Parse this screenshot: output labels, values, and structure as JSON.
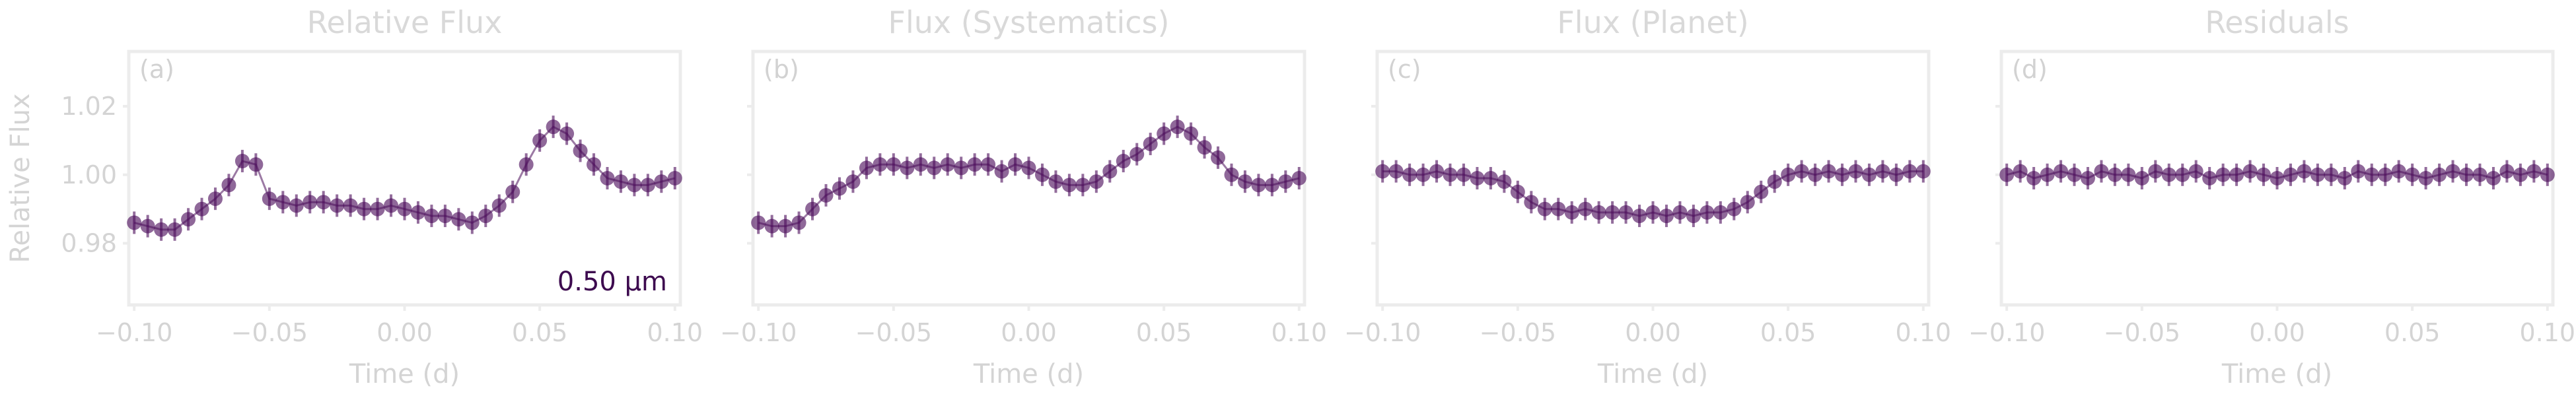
{
  "chart_data": [
    {
      "type": "scatter",
      "title": "Relative Flux",
      "panel_label": "(a)",
      "xlabel": "Time (d)",
      "ylabel": "Relative Flux",
      "annotation": "0.50 µm",
      "xlim": [
        -0.102,
        0.102
      ],
      "ylim": [
        0.962,
        1.036
      ],
      "xticks": [
        "−0.10",
        "−0.05",
        "0.00",
        "0.05",
        "0.10"
      ],
      "yticks": [
        "0.98",
        "1.00",
        "1.02"
      ],
      "grid": false,
      "series": [
        {
          "x": [
            -0.1,
            -0.095,
            -0.09,
            -0.085,
            -0.08,
            -0.075,
            -0.07,
            -0.065,
            -0.06,
            -0.055,
            -0.05,
            -0.045,
            -0.04,
            -0.035,
            -0.03,
            -0.025,
            -0.02,
            -0.015,
            -0.01,
            -0.005,
            0.0,
            0.005,
            0.01,
            0.015,
            0.02,
            0.025,
            0.03,
            0.035,
            0.04,
            0.045,
            0.05,
            0.055,
            0.06,
            0.065,
            0.07,
            0.075,
            0.08,
            0.085,
            0.09,
            0.095,
            0.1
          ],
          "y": [
            0.986,
            0.985,
            0.984,
            0.984,
            0.987,
            0.99,
            0.993,
            0.997,
            1.004,
            1.003,
            0.993,
            0.992,
            0.991,
            0.992,
            0.992,
            0.991,
            0.991,
            0.99,
            0.99,
            0.991,
            0.99,
            0.989,
            0.988,
            0.988,
            0.987,
            0.986,
            0.988,
            0.991,
            0.995,
            1.003,
            1.01,
            1.014,
            1.012,
            1.007,
            1.003,
            0.999,
            0.998,
            0.997,
            0.997,
            0.998,
            0.999
          ]
        }
      ]
    },
    {
      "type": "scatter",
      "title": "Flux (Systematics)",
      "panel_label": "(b)",
      "xlabel": "Time (d)",
      "xlim": [
        -0.102,
        0.102
      ],
      "ylim": [
        0.962,
        1.036
      ],
      "xticks": [
        "−0.10",
        "−0.05",
        "0.00",
        "0.05",
        "0.10"
      ],
      "grid": false,
      "series": [
        {
          "x": [
            -0.1,
            -0.095,
            -0.09,
            -0.085,
            -0.08,
            -0.075,
            -0.07,
            -0.065,
            -0.06,
            -0.055,
            -0.05,
            -0.045,
            -0.04,
            -0.035,
            -0.03,
            -0.025,
            -0.02,
            -0.015,
            -0.01,
            -0.005,
            0.0,
            0.005,
            0.01,
            0.015,
            0.02,
            0.025,
            0.03,
            0.035,
            0.04,
            0.045,
            0.05,
            0.055,
            0.06,
            0.065,
            0.07,
            0.075,
            0.08,
            0.085,
            0.09,
            0.095,
            0.1
          ],
          "y": [
            0.986,
            0.985,
            0.985,
            0.986,
            0.99,
            0.994,
            0.996,
            0.998,
            1.002,
            1.003,
            1.003,
            1.002,
            1.003,
            1.002,
            1.003,
            1.002,
            1.003,
            1.003,
            1.001,
            1.003,
            1.002,
            1.0,
            0.998,
            0.997,
            0.997,
            0.998,
            1.001,
            1.004,
            1.006,
            1.009,
            1.012,
            1.014,
            1.012,
            1.008,
            1.005,
            1.0,
            0.998,
            0.997,
            0.997,
            0.998,
            0.999
          ]
        }
      ]
    },
    {
      "type": "scatter",
      "title": "Flux (Planet)",
      "panel_label": "(c)",
      "xlabel": "Time (d)",
      "xlim": [
        -0.102,
        0.102
      ],
      "ylim": [
        0.962,
        1.036
      ],
      "xticks": [
        "−0.10",
        "−0.05",
        "0.00",
        "0.05",
        "0.10"
      ],
      "grid": false,
      "series": [
        {
          "x": [
            -0.1,
            -0.095,
            -0.09,
            -0.085,
            -0.08,
            -0.075,
            -0.07,
            -0.065,
            -0.06,
            -0.055,
            -0.05,
            -0.045,
            -0.04,
            -0.035,
            -0.03,
            -0.025,
            -0.02,
            -0.015,
            -0.01,
            -0.005,
            0.0,
            0.005,
            0.01,
            0.015,
            0.02,
            0.025,
            0.03,
            0.035,
            0.04,
            0.045,
            0.05,
            0.055,
            0.06,
            0.065,
            0.07,
            0.075,
            0.08,
            0.085,
            0.09,
            0.095,
            0.1
          ],
          "y": [
            1.001,
            1.001,
            1.0,
            1.0,
            1.001,
            1.0,
            1.0,
            0.999,
            0.999,
            0.998,
            0.995,
            0.992,
            0.99,
            0.99,
            0.989,
            0.99,
            0.989,
            0.989,
            0.989,
            0.988,
            0.989,
            0.988,
            0.989,
            0.988,
            0.989,
            0.989,
            0.99,
            0.992,
            0.995,
            0.998,
            1.0,
            1.001,
            1.0,
            1.001,
            1.0,
            1.001,
            1.0,
            1.001,
            1.0,
            1.001,
            1.001
          ]
        }
      ]
    },
    {
      "type": "scatter",
      "title": "Residuals",
      "panel_label": "(d)",
      "xlabel": "Time (d)",
      "xlim": [
        -0.102,
        0.102
      ],
      "ylim": [
        0.962,
        1.036
      ],
      "xticks": [
        "−0.10",
        "−0.05",
        "0.00",
        "0.05",
        "0.10"
      ],
      "grid": false,
      "series": [
        {
          "x": [
            -0.1,
            -0.095,
            -0.09,
            -0.085,
            -0.08,
            -0.075,
            -0.07,
            -0.065,
            -0.06,
            -0.055,
            -0.05,
            -0.045,
            -0.04,
            -0.035,
            -0.03,
            -0.025,
            -0.02,
            -0.015,
            -0.01,
            -0.005,
            0.0,
            0.005,
            0.01,
            0.015,
            0.02,
            0.025,
            0.03,
            0.035,
            0.04,
            0.045,
            0.05,
            0.055,
            0.06,
            0.065,
            0.07,
            0.075,
            0.08,
            0.085,
            0.09,
            0.095,
            0.1
          ],
          "y": [
            1.0,
            1.001,
            0.999,
            1.0,
            1.001,
            1.0,
            0.999,
            1.001,
            1.0,
            1.0,
            0.999,
            1.001,
            1.0,
            1.0,
            1.001,
            0.999,
            1.0,
            1.0,
            1.001,
            1.0,
            0.999,
            1.0,
            1.001,
            1.0,
            1.0,
            0.999,
            1.001,
            1.0,
            1.0,
            1.001,
            1.0,
            0.999,
            1.0,
            1.001,
            1.0,
            1.0,
            0.999,
            1.001,
            1.0,
            1.001,
            1.0
          ]
        }
      ]
    }
  ],
  "colors": {
    "marker": "#4b0c5a",
    "annotation": "#3d0a4f",
    "spine": "#ececec",
    "text": "#d4d4d4"
  }
}
